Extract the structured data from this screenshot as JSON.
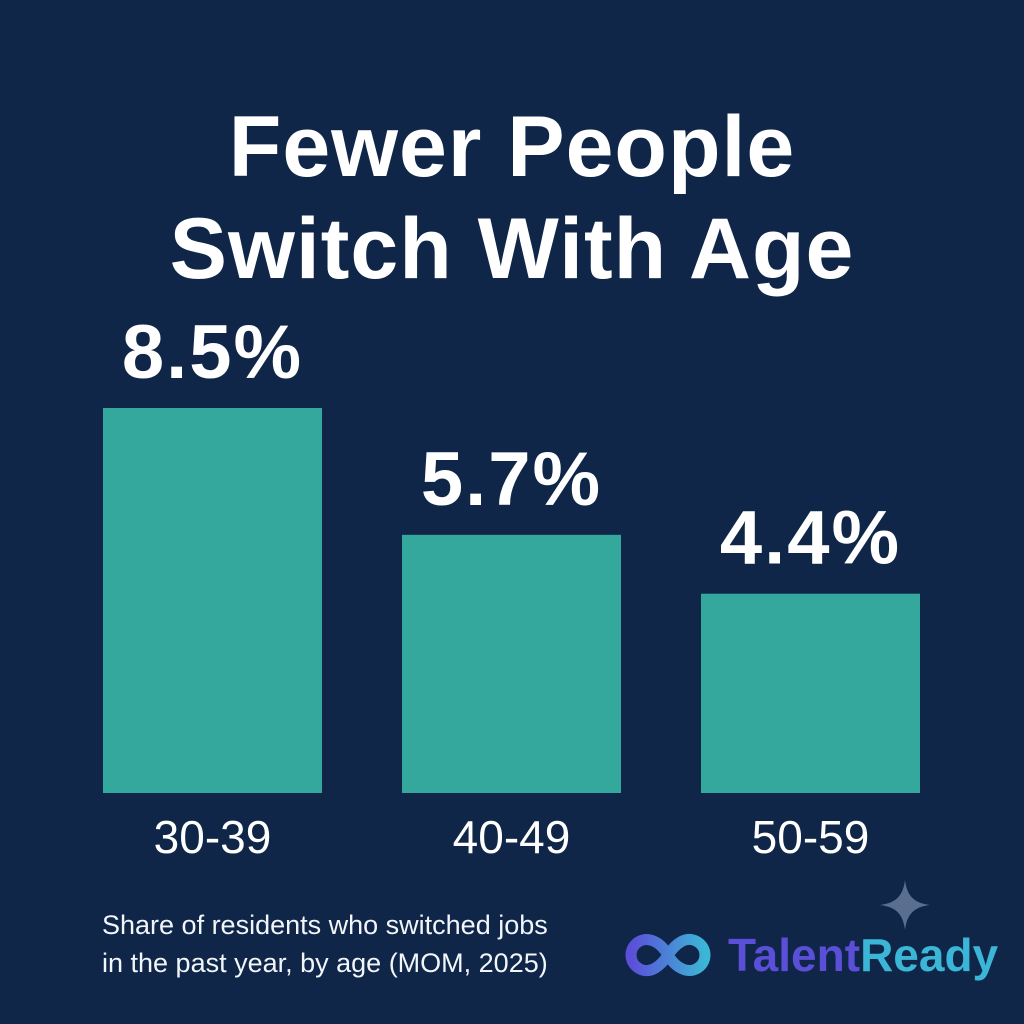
{
  "chart_data": {
    "type": "bar",
    "title_lines": [
      "Fewer People",
      "Switch With Age"
    ],
    "categories": [
      "30-39",
      "40-49",
      "50-59"
    ],
    "values": [
      8.5,
      5.7,
      4.4
    ],
    "value_labels": [
      "8.5%",
      "5.7%",
      "4.4%"
    ],
    "xlabel": "",
    "ylabel": "",
    "ylim": [
      0,
      8.5
    ],
    "grid": false,
    "legend": "none",
    "bar_color": "#35a89e",
    "caption_lines": [
      "Share of residents who switched jobs",
      "in the past year, by age (MOM, 2025)"
    ]
  },
  "brand": {
    "name_part1": "Talent",
    "name_part2": "Ready",
    "icon": "infinity-loop-icon",
    "color_part1": "#5b4fd8",
    "color_part2": "#3cb6d6"
  },
  "decoration": {
    "sparkle_icon": "sparkle-icon",
    "sparkle_color": "#5a6f8f"
  },
  "colors": {
    "background": "#0f2648",
    "text": "#ffffff"
  }
}
